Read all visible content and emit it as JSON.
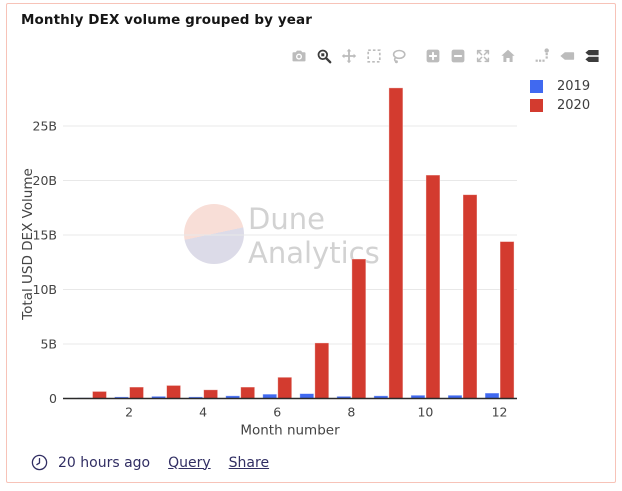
{
  "header": {
    "title": "Monthly DEX volume grouped by year"
  },
  "toolbar": {
    "icons": [
      {
        "name": "camera",
        "active": false,
        "group": false
      },
      {
        "name": "zoom",
        "active": true,
        "group": false
      },
      {
        "name": "pan",
        "active": false,
        "group": false
      },
      {
        "name": "box-select",
        "active": false,
        "group": false
      },
      {
        "name": "lasso",
        "active": false,
        "group": false
      },
      {
        "name": "zoom-in",
        "active": false,
        "group": true
      },
      {
        "name": "zoom-out",
        "active": false,
        "group": false
      },
      {
        "name": "autoscale",
        "active": false,
        "group": false
      },
      {
        "name": "reset-home",
        "active": false,
        "group": false
      },
      {
        "name": "spikelines",
        "active": false,
        "group": true
      },
      {
        "name": "hover-closest",
        "active": false,
        "group": false
      },
      {
        "name": "hover-compare",
        "active": true,
        "group": false
      }
    ]
  },
  "watermark": {
    "line1": "Dune",
    "line2": "Analytics"
  },
  "footer": {
    "updated": "20 hours ago",
    "query_label": "Query",
    "share_label": "Share"
  },
  "colors": {
    "border": "#f7c3b8",
    "series_2019": "#4069f0",
    "series_2020": "#d33b2f",
    "axis_text": "#444444",
    "gridline": "#e8e8e8",
    "axis_line": "#2a2a2a",
    "footer_text": "#312e63",
    "watermark_text": "#d2d2d2",
    "watermark_pink": "#f8ded7",
    "watermark_lavender": "#dcdbe8"
  },
  "chart_data": {
    "type": "bar",
    "title": "Monthly DEX volume grouped by year",
    "xlabel": "Month number",
    "ylabel": "Total USD DEX Volume",
    "categories": [
      1,
      2,
      3,
      4,
      5,
      6,
      7,
      8,
      9,
      10,
      11,
      12
    ],
    "series": [
      {
        "name": "2019",
        "color": "#4069f0",
        "values": [
          0.05,
          0.15,
          0.2,
          0.15,
          0.25,
          0.4,
          0.45,
          0.2,
          0.25,
          0.3,
          0.3,
          0.5
        ]
      },
      {
        "name": "2020",
        "color": "#d33b2f",
        "values": [
          0.65,
          1.05,
          1.2,
          0.8,
          1.05,
          1.95,
          5.1,
          12.8,
          28.5,
          20.5,
          18.7,
          14.4
        ]
      }
    ],
    "unit": "billions USD",
    "ylim": [
      0,
      30
    ],
    "ytick": {
      "values": [
        0,
        5,
        10,
        15,
        20,
        25
      ],
      "labels": [
        "0",
        "5B",
        "10B",
        "15B",
        "20B",
        "25B"
      ]
    },
    "xticks": [
      2,
      4,
      6,
      8,
      10,
      12
    ],
    "grid": true,
    "legend_position": "top-right"
  }
}
